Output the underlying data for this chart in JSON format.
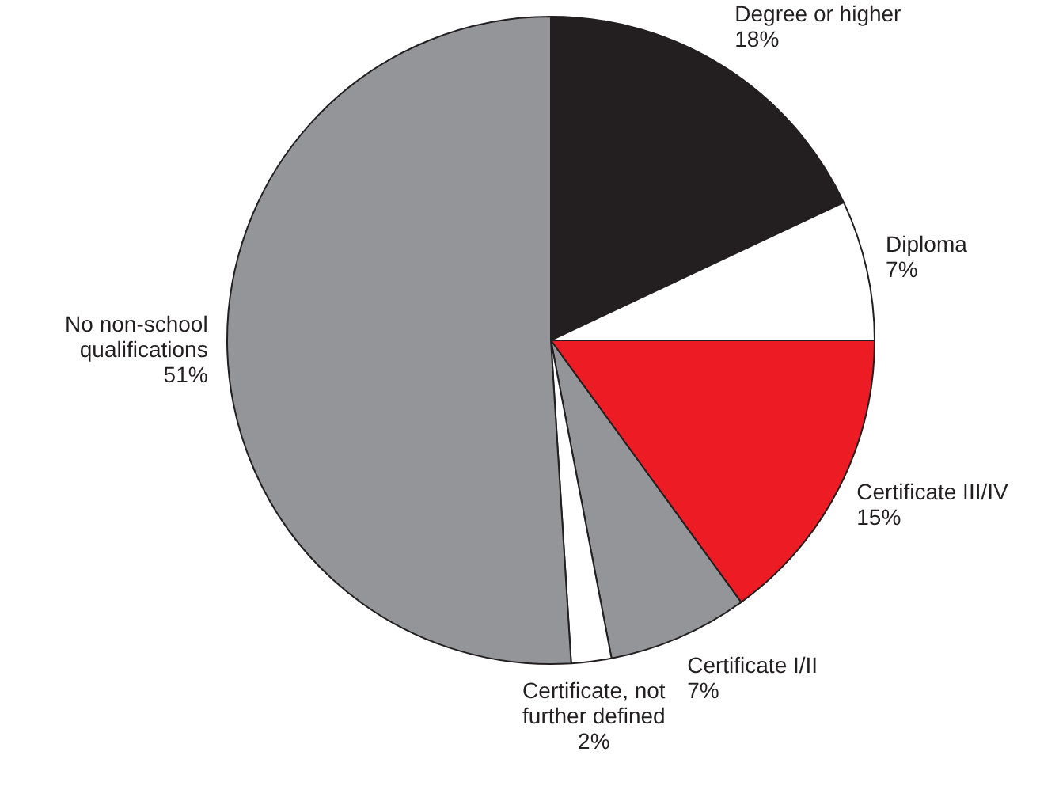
{
  "chart_data": {
    "type": "pie",
    "categories": [
      "Degree or higher",
      "Diploma",
      "Certificate III/IV",
      "Certificate I/II",
      "Certificate, not further defined",
      "No non-school qualifications"
    ],
    "values": [
      18,
      7,
      15,
      7,
      2,
      51
    ],
    "colors": [
      "#231f20",
      "#ffffff",
      "#ed1c24",
      "#939598",
      "#ffffff",
      "#939598"
    ],
    "value_labels": [
      "18%",
      "7%",
      "15%",
      "7%",
      "2%",
      "51%"
    ],
    "legend": false
  }
}
